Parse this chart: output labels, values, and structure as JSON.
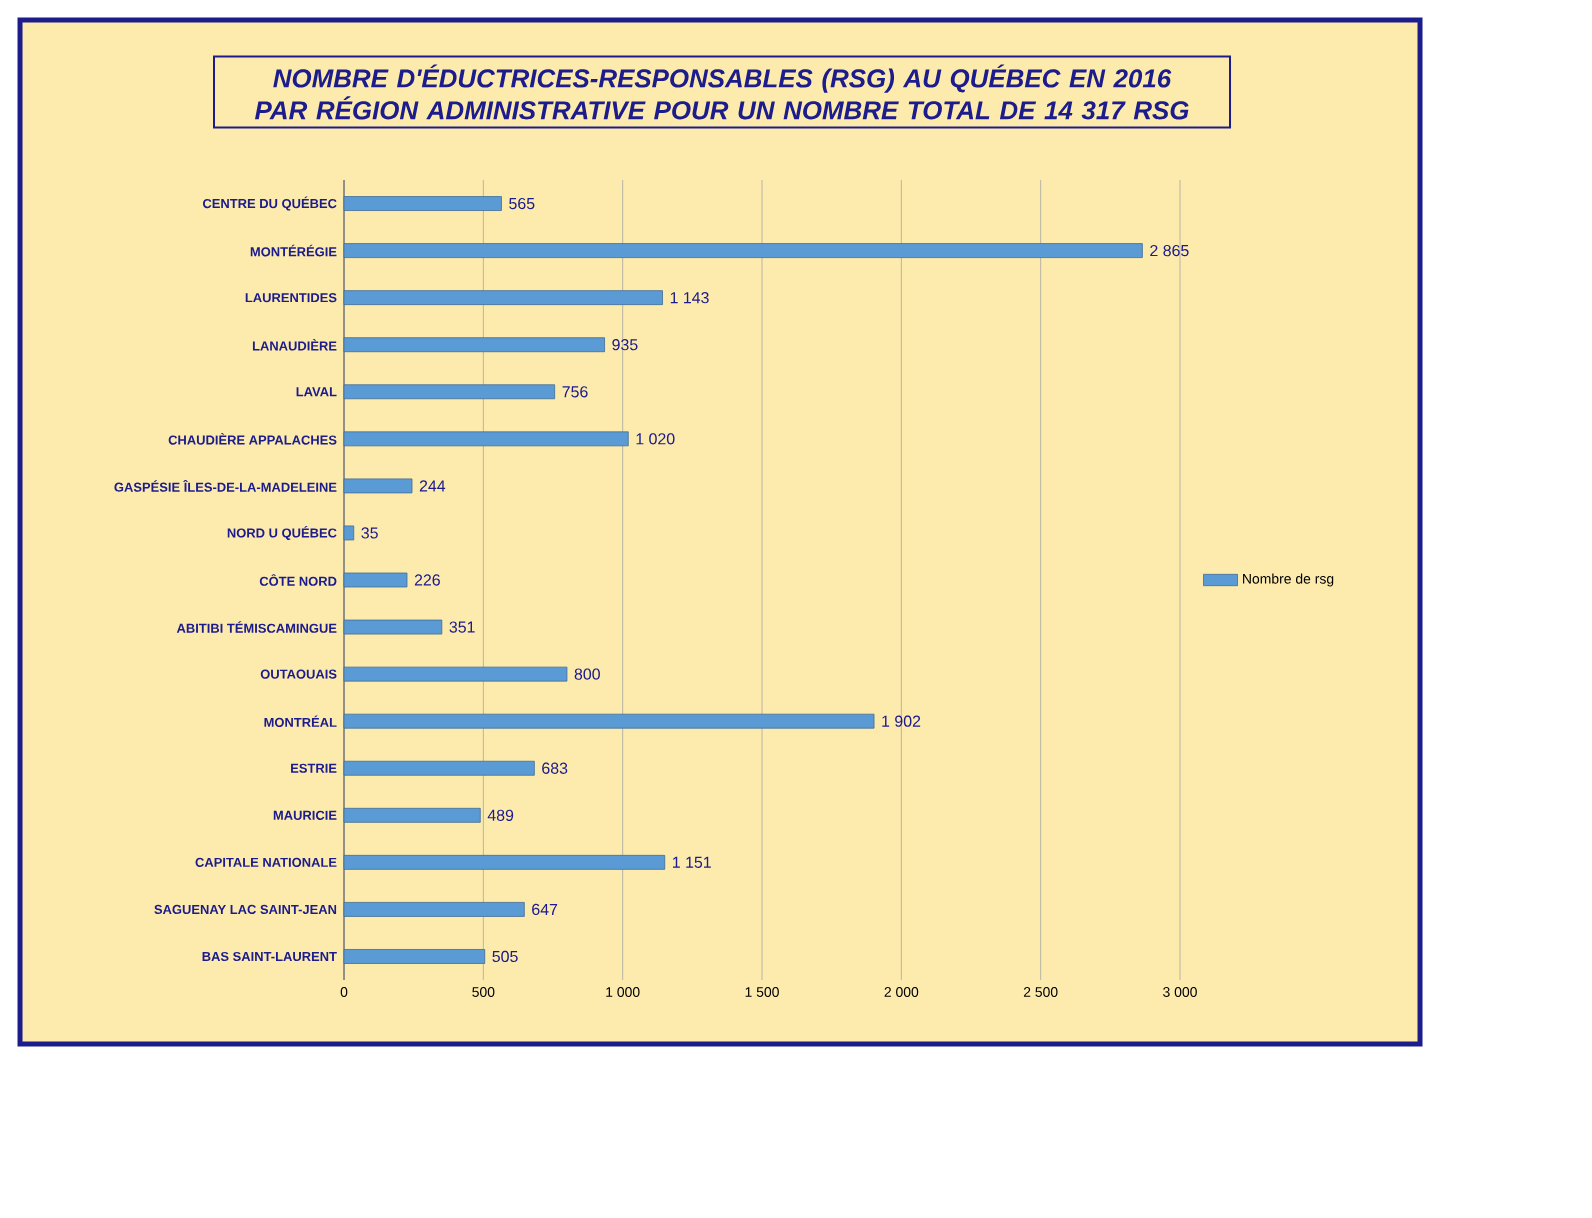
{
  "chart_data": {
    "type": "bar",
    "orientation": "horizontal",
    "title": "NOMBRE D'ÉDUCTRICES-RESPONSABLES (RSG) AU QUÉBEC EN 2016 PAR RÉGION ADMINISTRATIVE POUR UN NOMBRE TOTAL DE 14 317 RSG",
    "categories": [
      "CENTRE DU QUÉBEC",
      "MONTÉRÉGIE",
      "LAURENTIDES",
      "LANAUDIÈRE",
      "LAVAL",
      "CHAUDIÈRE APPALACHES",
      "GASPÉSIE ÎLES-DE-LA-MADELEINE",
      "NORD U QUÉBEC",
      "CÔTE NORD",
      "ABITIBI TÉMISCAMINGUE",
      "OUTAOUAIS",
      "MONTRÉAL",
      "ESTRIE",
      "MAURICIE",
      "CAPITALE NATIONALE",
      "SAGUENAY LAC SAINT-JEAN",
      "BAS SAINT-LAURENT"
    ],
    "series": [
      {
        "name": "Nombre de rsg",
        "color": "#5b9bd5",
        "values": [
          565,
          2865,
          1143,
          935,
          756,
          1020,
          244,
          35,
          226,
          351,
          800,
          1902,
          683,
          489,
          1151,
          647,
          505
        ],
        "value_labels": [
          "565",
          "2 865",
          "1 143",
          "935",
          "756",
          "1 020",
          "244",
          "35",
          "226",
          "351",
          "800",
          "1 902",
          "683",
          "489",
          "1 151",
          "647",
          "505"
        ]
      }
    ],
    "xlim": [
      0,
      3000
    ],
    "xticks": [
      0,
      500,
      {
        "value": 1000,
        "label": "1 000"
      },
      {
        "value": 1500,
        "label": "1 500"
      },
      {
        "value": 2000,
        "label": "2 000"
      },
      {
        "value": 2500,
        "label": "2 500"
      },
      {
        "value": 3000,
        "label": "3 000"
      }
    ],
    "grid": "x",
    "legend": "right"
  }
}
